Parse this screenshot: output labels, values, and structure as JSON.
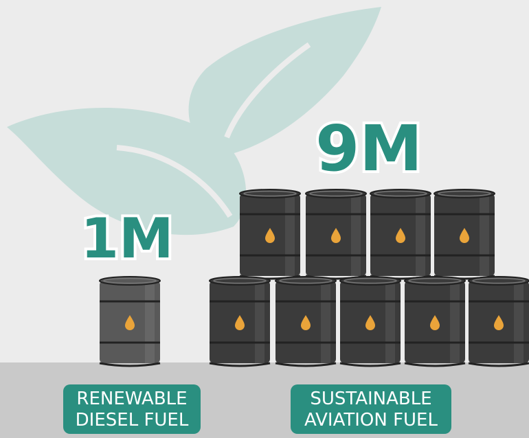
{
  "groups": [
    {
      "value": "1M",
      "label_lines": [
        "RENEWABLE",
        "DIESEL FUEL"
      ]
    },
    {
      "value": "9M",
      "label_lines": [
        "SUSTAINABLE",
        "AVIATION FUEL"
      ]
    }
  ]
}
